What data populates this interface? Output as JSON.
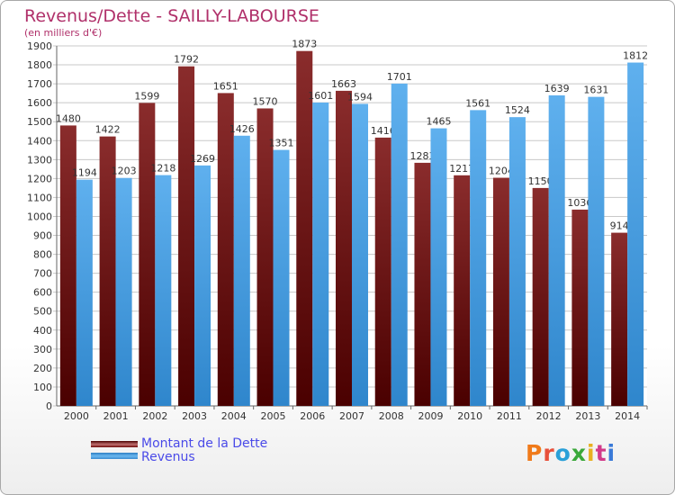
{
  "header": {
    "title": "Revenus/Dette - SAILLY-LABOURSE",
    "subtitle": "(en milliers d'€)"
  },
  "legend": {
    "items": [
      {
        "label": "Montant de la Dette",
        "color": "#7a1a1a"
      },
      {
        "label": "Revenus",
        "color": "#4aa3e6"
      }
    ]
  },
  "logo": {
    "text": "Proxiti"
  },
  "chart_data": {
    "type": "bar",
    "categories": [
      "2000",
      "2001",
      "2002",
      "2003",
      "2004",
      "2005",
      "2006",
      "2007",
      "2008",
      "2009",
      "2010",
      "2011",
      "2012",
      "2013",
      "2014"
    ],
    "series": [
      {
        "name": "Montant de la Dette",
        "color": "#7a1a1a",
        "values": [
          1480,
          1422,
          1599,
          1792,
          1651,
          1570,
          1873,
          1663,
          1416,
          1283,
          1217,
          1204,
          1150,
          1036,
          914
        ],
        "labels": [
          "1480",
          "1422",
          "1599",
          "1792",
          "1651",
          "1570",
          "1873",
          "1663",
          "1416",
          "1283",
          "1217",
          "1204",
          "1150",
          "1036",
          "914"
        ]
      },
      {
        "name": "Revenus",
        "color": "#4aa3e6",
        "values": [
          1194,
          1203,
          1218,
          1269,
          1426,
          1351,
          1601,
          1594,
          1701,
          1465,
          1561,
          1524,
          1639,
          1631,
          1812
        ],
        "labels": [
          "1194",
          "1203",
          "1218",
          "1269",
          "1426",
          "1351",
          "1601",
          "1594",
          "1701",
          "1465",
          "1561",
          "1524",
          "1639",
          "1631",
          "1812"
        ]
      }
    ],
    "title": "Revenus/Dette - SAILLY-LABOURSE",
    "ylabel": "(en milliers d'€)",
    "ylim": [
      0,
      1900
    ],
    "ytick_step": 100,
    "grid": true,
    "legend_position": "bottom-left"
  }
}
